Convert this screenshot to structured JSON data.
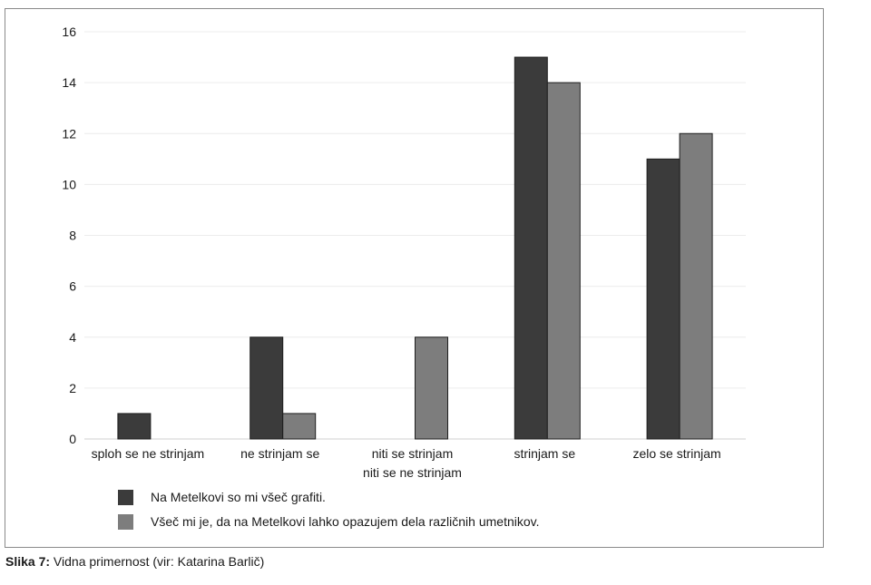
{
  "caption": {
    "label": "Slika 7:",
    "text": "Vidna primernost (vir: Katarina Barlič)"
  },
  "chart_data": {
    "type": "bar",
    "categories": [
      [
        "sploh se ne strinjam"
      ],
      [
        "ne strinjam se"
      ],
      [
        "niti se strinjam",
        "niti se ne strinjam"
      ],
      [
        "strinjam se"
      ],
      [
        "zelo se strinjam"
      ]
    ],
    "series": [
      {
        "name": "Na Metelkovi so mi všeč grafiti.",
        "color": "#3b3b3b",
        "values": [
          1,
          4,
          0,
          15,
          11
        ]
      },
      {
        "name": "Všeč mi je, da na Metelkovi lahko opazujem dela različnih umetnikov.",
        "color": "#7d7d7d",
        "values": [
          0,
          1,
          4,
          14,
          12
        ]
      }
    ],
    "yticks": [
      0,
      2,
      4,
      6,
      8,
      10,
      12,
      14,
      16
    ],
    "ylim": [
      0,
      16
    ],
    "grid": true,
    "legend_position": "bottom"
  }
}
